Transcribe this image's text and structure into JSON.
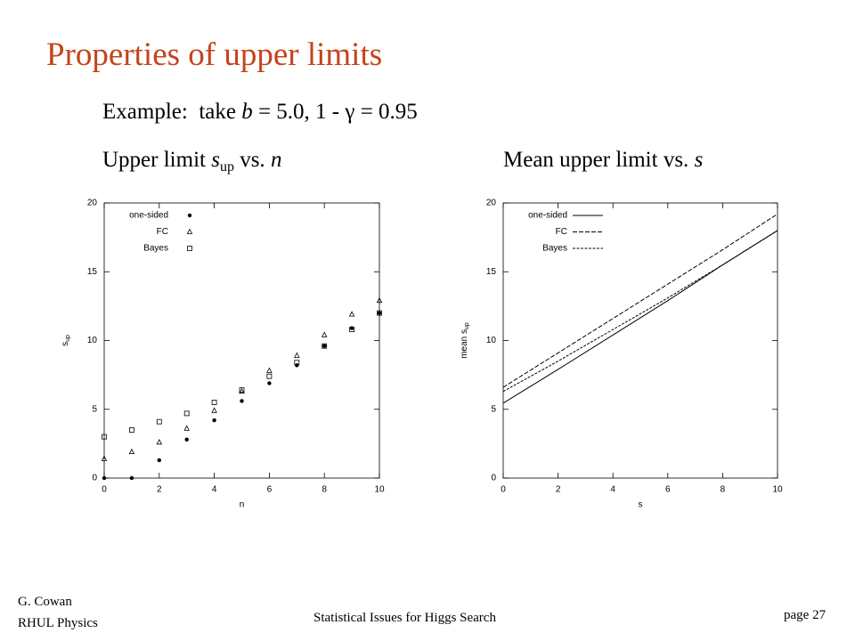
{
  "slide": {
    "title": "Properties of upper limits",
    "example": [
      "Example:",
      "take ",
      "b",
      " = 5.0, 1 - ",
      "γ",
      " = 0.95"
    ],
    "heading_left": [
      "Upper limit ",
      "s",
      "up",
      " vs. ",
      "n"
    ],
    "heading_right": [
      "Mean upper limit vs. ",
      "s"
    ],
    "author": "G. Cowan",
    "affiliation": "RHUL Physics",
    "footer": "Statistical Issues for Higgs Search",
    "page": "page 27"
  },
  "chart_data": [
    {
      "type": "scatter",
      "xlabel": "n",
      "ylabel": {
        "text": "s",
        "sub": "up"
      },
      "x": [
        0,
        1,
        2,
        3,
        4,
        5,
        6,
        7,
        8,
        9,
        10
      ],
      "series": [
        {
          "name": "one-sided",
          "color": "#000000",
          "marker": "dot",
          "values": [
            0,
            0,
            1.3,
            2.8,
            4.2,
            5.6,
            6.9,
            8.2,
            9.6,
            10.9,
            12.0
          ]
        },
        {
          "name": "FC",
          "color": "#000000",
          "marker": "triangle",
          "values": [
            1.4,
            1.9,
            2.6,
            3.6,
            4.9,
            6.3,
            7.8,
            8.9,
            10.4,
            11.9,
            12.9
          ]
        },
        {
          "name": "Bayes",
          "color": "#000000",
          "marker": "square",
          "values": [
            3.0,
            3.5,
            4.1,
            4.7,
            5.5,
            6.4,
            7.4,
            8.4,
            9.6,
            10.8,
            12.0
          ]
        }
      ],
      "xlim": [
        0,
        10
      ],
      "xticks": [
        0,
        2,
        4,
        6,
        8,
        10
      ],
      "ylim": [
        0,
        20
      ],
      "yticks": [
        0,
        5,
        10,
        15,
        20
      ],
      "legend": "top-left"
    },
    {
      "type": "line",
      "xlabel": "s",
      "ylabel": {
        "text": "mean s",
        "sub": "up"
      },
      "x": [
        0,
        2,
        4,
        6,
        8,
        10
      ],
      "series": [
        {
          "name": "one-sided",
          "color": "#000000",
          "dash": "none",
          "values": [
            5.45,
            7.9,
            10.4,
            12.9,
            15.5,
            18.0
          ]
        },
        {
          "name": "FC",
          "color": "#000000",
          "dash": "5,2",
          "values": [
            6.6,
            9.1,
            11.6,
            14.1,
            16.6,
            19.2
          ]
        },
        {
          "name": "Bayes",
          "color": "#000000",
          "dash": "3,1.5",
          "values": [
            6.3,
            8.5,
            10.8,
            13.1,
            15.5,
            18.0
          ]
        }
      ],
      "xlim": [
        0,
        10
      ],
      "xticks": [
        0,
        2,
        4,
        6,
        8,
        10
      ],
      "ylim": [
        0,
        20
      ],
      "yticks": [
        0,
        5,
        10,
        15,
        20
      ],
      "legend": "top-left"
    }
  ]
}
